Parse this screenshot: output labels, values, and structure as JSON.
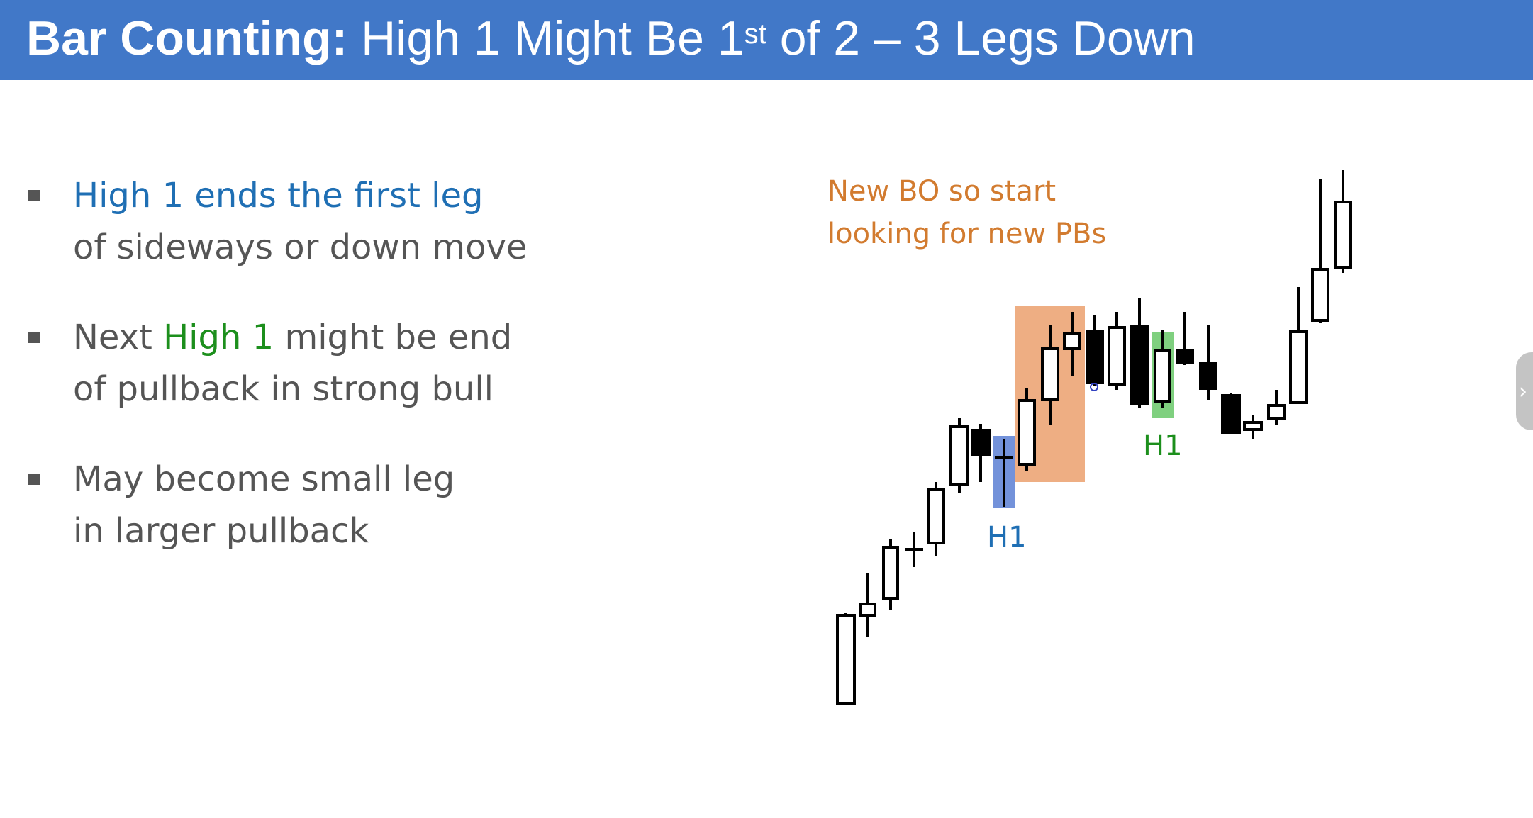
{
  "slide": {
    "title_bold": "Bar Counting:",
    "title_rest": " High 1 Might Be 1",
    "title_sup": "st",
    "title_tail": " of 2 – 3 Legs Down"
  },
  "bullets": [
    {
      "lines": [
        {
          "parts": [
            {
              "text": "High 1 ends the first leg",
              "color": "blue"
            }
          ]
        },
        {
          "parts": [
            {
              "text": "of sideways or down move",
              "color": "gray"
            }
          ]
        }
      ]
    },
    {
      "lines": [
        {
          "parts": [
            {
              "text": "Next ",
              "color": "gray"
            },
            {
              "text": "High 1",
              "color": "green"
            },
            {
              "text": " might be end",
              "color": "gray"
            }
          ]
        },
        {
          "parts": [
            {
              "text": "of pullback in strong bull",
              "color": "gray"
            }
          ]
        }
      ]
    },
    {
      "lines": [
        {
          "parts": [
            {
              "text": "May become small leg",
              "color": "gray"
            }
          ]
        },
        {
          "parts": [
            {
              "text": "in larger pullback",
              "color": "gray"
            }
          ]
        }
      ]
    }
  ],
  "chart": {
    "annotation_line1": "New BO so start",
    "annotation_line2": "looking for new PBs",
    "label_h1_first": "H1",
    "label_h1_second": "H1",
    "colors": {
      "blue_box": "#5b7fd4",
      "orange_box": "#e8935a",
      "green_box": "#5fc45f",
      "annotation": "#d27b2f",
      "h1_first": "#1f6fb4",
      "h1_second": "#1c8f1c"
    }
  },
  "side_tab_icon": "chevron-right-icon"
}
